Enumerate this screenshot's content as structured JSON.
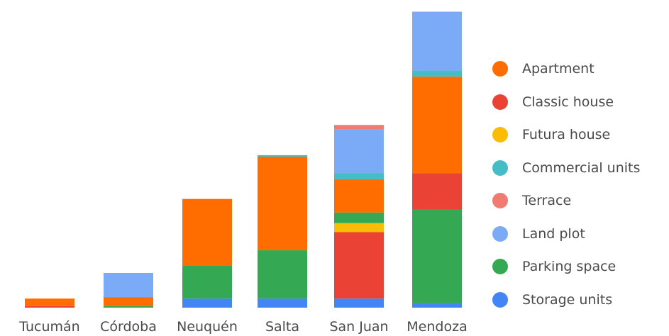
{
  "chart_data": {
    "type": "bar",
    "stacked": true,
    "categories": [
      "Tucumán",
      "Córdoba",
      "Neuquén",
      "Salta",
      "San Juan",
      "Mendoza"
    ],
    "series": [
      {
        "name": "Storage units",
        "color": "#4285f4",
        "values": [
          0,
          0,
          3,
          3,
          3,
          1.5
        ]
      },
      {
        "name": "Parking space",
        "color": "#34a853",
        "values": [
          0,
          0.5,
          11,
          16,
          0,
          31
        ]
      },
      {
        "name": "Classic house",
        "color": "#ea4335",
        "values": [
          0.5,
          0,
          0,
          0,
          22,
          12
        ]
      },
      {
        "name": "Futura house",
        "color": "#fbbc04",
        "values": [
          0,
          0,
          0,
          0,
          3,
          0
        ]
      },
      {
        "name": "Parking space",
        "color": "#34a853",
        "values": [
          0,
          0,
          0,
          0,
          3.5,
          0
        ]
      },
      {
        "name": "Apartment",
        "color": "#ff6d00",
        "values": [
          2.5,
          3,
          22,
          31,
          11,
          32
        ]
      },
      {
        "name": "Commercial units",
        "color": "#46bdc6",
        "values": [
          0,
          0,
          0,
          0.5,
          2,
          2
        ]
      },
      {
        "name": "Land plot",
        "color": "#7baaf7",
        "values": [
          0,
          8,
          0,
          0,
          14.5,
          19.5
        ]
      },
      {
        "name": "Terrace",
        "color": "#f07b72",
        "values": [
          0,
          0,
          0,
          0,
          1.5,
          0
        ]
      }
    ],
    "ylim": [
      0,
      100
    ],
    "grid": false,
    "legend": {
      "position": "right",
      "entries": [
        {
          "name": "Apartment",
          "color": "#ff6d00"
        },
        {
          "name": "Classic house",
          "color": "#ea4335"
        },
        {
          "name": "Futura house",
          "color": "#fbbc04"
        },
        {
          "name": "Commercial units",
          "color": "#46bdc6"
        },
        {
          "name": "Terrace",
          "color": "#f07b72"
        },
        {
          "name": "Land plot",
          "color": "#7baaf7"
        },
        {
          "name": "Parking space",
          "color": "#34a853"
        },
        {
          "name": "Storage units",
          "color": "#4285f4"
        }
      ]
    }
  }
}
